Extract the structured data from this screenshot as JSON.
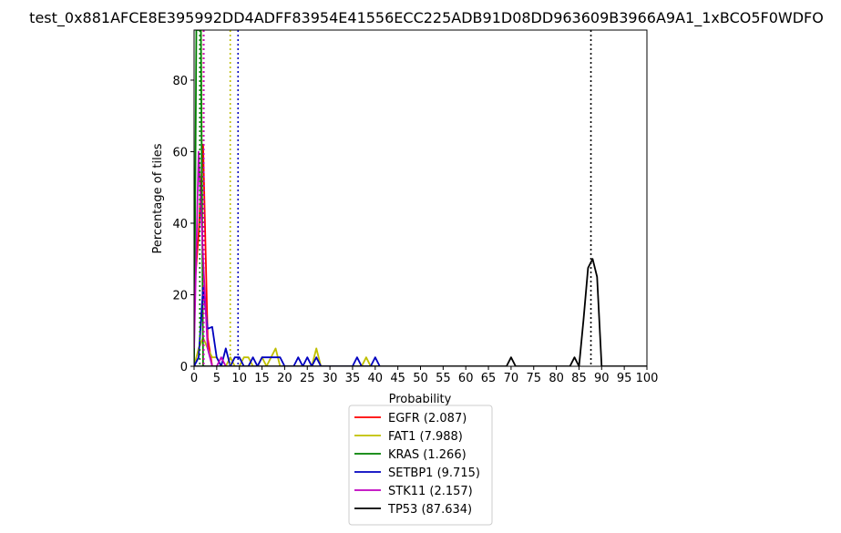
{
  "chart_data": {
    "type": "line",
    "title": "test_0x881AFCE8E395992DD4ADFF83954E41556ECC225ADB91D08DD963609B3966A9A1_1xBCO5F0WDFO",
    "xlabel": "Probability",
    "ylabel": "Percentage of tiles",
    "xlim": [
      0,
      100
    ],
    "ylim": [
      0,
      94
    ],
    "xticks": [
      0,
      5,
      10,
      15,
      20,
      25,
      30,
      35,
      40,
      45,
      50,
      55,
      60,
      65,
      70,
      75,
      80,
      85,
      90,
      95,
      100
    ],
    "yticks": [
      0,
      20,
      40,
      60,
      80
    ],
    "grid": false,
    "legend_position": "below",
    "series": [
      {
        "name": "EGFR (2.087)",
        "color": "#ff0000",
        "mean": 2.087,
        "x": [
          0,
          1,
          2,
          3,
          4,
          5
        ],
        "y": [
          20,
          37,
          62,
          8,
          0,
          0
        ]
      },
      {
        "name": "FAT1 (7.988)",
        "color": "#bfbf00",
        "mean": 7.988,
        "x": [
          0,
          1,
          2,
          3,
          4,
          5,
          6,
          7,
          8,
          9,
          10,
          11,
          12,
          13,
          14,
          15,
          16,
          17,
          18,
          19,
          20,
          21,
          22,
          23,
          24,
          25,
          26,
          27,
          28,
          29,
          30,
          31,
          32,
          33,
          34,
          35,
          36,
          37,
          38,
          39,
          40,
          41
        ],
        "y": [
          0,
          5,
          8,
          5,
          2.5,
          2.5,
          0,
          0,
          2.5,
          0,
          0,
          2.5,
          2.5,
          0,
          0,
          2.5,
          0,
          2.5,
          5,
          0,
          0,
          0,
          0,
          0,
          0,
          0,
          0,
          5,
          0,
          0,
          0,
          0,
          0,
          0,
          0,
          0,
          0,
          0,
          2.5,
          0,
          0,
          0
        ]
      },
      {
        "name": "KRAS (1.266)",
        "color": "#008000",
        "mean": 1.266,
        "x": [
          0,
          0.5,
          1,
          1.5,
          2,
          2.5
        ],
        "y": [
          0,
          94,
          94,
          94,
          0,
          0
        ]
      },
      {
        "name": "SETBP1 (9.715)",
        "color": "#0000bf",
        "mean": 9.715,
        "x": [
          0,
          1,
          2,
          3,
          4,
          5,
          6,
          7,
          8,
          9,
          10,
          11,
          12,
          13,
          14,
          15,
          16,
          17,
          18,
          19,
          20,
          21,
          22,
          23,
          24,
          25,
          26,
          27,
          28,
          29,
          30,
          31,
          32,
          33,
          34,
          35,
          36,
          37,
          38,
          39,
          40,
          41
        ],
        "y": [
          0,
          2.5,
          22,
          10.5,
          11,
          2.5,
          0,
          5,
          0,
          2.5,
          2.5,
          0,
          0,
          2.5,
          0,
          2.5,
          2.5,
          2.5,
          2.5,
          2.5,
          0,
          0,
          0,
          2.5,
          0,
          2.5,
          0,
          2.5,
          0,
          0,
          0,
          0,
          0,
          0,
          0,
          0,
          2.5,
          0,
          0,
          0,
          2.5,
          0
        ]
      },
      {
        "name": "STK11 (2.157)",
        "color": "#bf00bf",
        "mean": 2.157,
        "x": [
          0,
          1,
          2,
          3,
          4,
          5,
          6,
          7
        ],
        "y": [
          5,
          60,
          30,
          5,
          0,
          0,
          2.5,
          0
        ]
      },
      {
        "name": "TP53 (87.634)",
        "color": "#000000",
        "mean": 87.634,
        "x": [
          0,
          5,
          10,
          15,
          20,
          25,
          30,
          35,
          40,
          45,
          50,
          55,
          60,
          65,
          69,
          70,
          71,
          75,
          80,
          83,
          84,
          85,
          86,
          87,
          88,
          89,
          90,
          91,
          95,
          100
        ],
        "y": [
          0,
          0,
          0,
          0,
          0,
          0,
          0,
          0,
          0,
          0,
          0,
          0,
          0,
          0,
          0,
          2.5,
          0,
          0,
          0,
          0,
          2.5,
          0,
          13,
          27.5,
          30,
          25,
          0,
          0,
          0,
          0
        ]
      }
    ]
  }
}
